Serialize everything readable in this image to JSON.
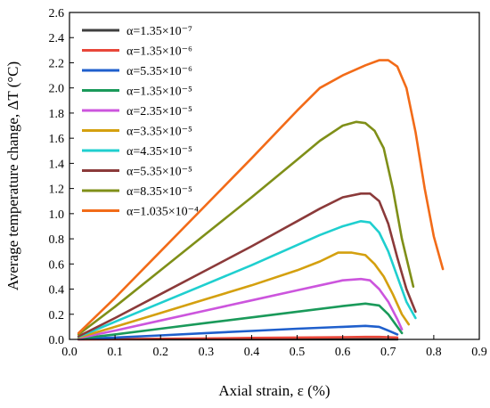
{
  "chart_data": {
    "type": "line",
    "xlabel": "Axial strain, ε (%)",
    "ylabel": "Average temperature change, ΔT (°C)",
    "xlim": [
      0.0,
      0.9
    ],
    "ylim": [
      0.0,
      2.6
    ],
    "xticks": [
      "0.0",
      "0.1",
      "0.2",
      "0.3",
      "0.4",
      "0.5",
      "0.6",
      "0.7",
      "0.8",
      "0.9"
    ],
    "yticks": [
      "0.0",
      "0.2",
      "0.4",
      "0.6",
      "0.8",
      "1.0",
      "1.2",
      "1.4",
      "1.6",
      "1.8",
      "2.0",
      "2.2",
      "2.4",
      "2.6"
    ],
    "legend_position": "top-left",
    "grid": false,
    "series": [
      {
        "name": "α=1.35×10⁻⁷",
        "color": "#3f3f3f",
        "x": [
          0.02,
          0.1,
          0.2,
          0.3,
          0.4,
          0.5,
          0.6,
          0.65,
          0.68,
          0.7,
          0.72
        ],
        "y": [
          0.0,
          0.0,
          0.0,
          0.0,
          0.001,
          0.001,
          0.001,
          0.001,
          0.001,
          0.0,
          0.0
        ]
      },
      {
        "name": "α=1.35×10⁻⁶",
        "color": "#e8473a",
        "x": [
          0.02,
          0.1,
          0.2,
          0.3,
          0.4,
          0.5,
          0.6,
          0.65,
          0.68,
          0.7,
          0.72
        ],
        "y": [
          0.0,
          0.002,
          0.005,
          0.008,
          0.012,
          0.015,
          0.018,
          0.02,
          0.02,
          0.018,
          0.015
        ]
      },
      {
        "name": "α=5.35×10⁻⁶",
        "color": "#1f5fcc",
        "x": [
          0.02,
          0.1,
          0.2,
          0.3,
          0.4,
          0.5,
          0.6,
          0.65,
          0.68,
          0.7,
          0.72
        ],
        "y": [
          0.003,
          0.015,
          0.032,
          0.05,
          0.067,
          0.085,
          0.1,
          0.108,
          0.1,
          0.07,
          0.04
        ]
      },
      {
        "name": "α=1.35×10⁻⁵",
        "color": "#1a9a5a",
        "x": [
          0.02,
          0.1,
          0.2,
          0.3,
          0.4,
          0.5,
          0.6,
          0.65,
          0.68,
          0.7,
          0.72,
          0.73
        ],
        "y": [
          0.006,
          0.04,
          0.085,
          0.13,
          0.175,
          0.22,
          0.265,
          0.285,
          0.27,
          0.2,
          0.1,
          0.05
        ]
      },
      {
        "name": "α=2.35×10⁻⁵",
        "color": "#cc55dd",
        "x": [
          0.02,
          0.1,
          0.2,
          0.3,
          0.4,
          0.5,
          0.55,
          0.6,
          0.64,
          0.66,
          0.68,
          0.7,
          0.72,
          0.73
        ],
        "y": [
          0.01,
          0.07,
          0.15,
          0.23,
          0.31,
          0.39,
          0.43,
          0.47,
          0.48,
          0.47,
          0.4,
          0.3,
          0.16,
          0.08
        ]
      },
      {
        "name": "α=3.35×10⁻⁵",
        "color": "#d4a00f",
        "x": [
          0.02,
          0.1,
          0.2,
          0.3,
          0.4,
          0.5,
          0.55,
          0.59,
          0.62,
          0.65,
          0.67,
          0.69,
          0.71,
          0.73,
          0.745
        ],
        "y": [
          0.015,
          0.1,
          0.21,
          0.32,
          0.43,
          0.55,
          0.62,
          0.69,
          0.69,
          0.67,
          0.6,
          0.5,
          0.36,
          0.2,
          0.12
        ]
      },
      {
        "name": "α=4.35×10⁻⁵",
        "color": "#1fcfcf",
        "x": [
          0.02,
          0.1,
          0.2,
          0.3,
          0.4,
          0.5,
          0.55,
          0.6,
          0.64,
          0.66,
          0.68,
          0.7,
          0.72,
          0.74,
          0.76
        ],
        "y": [
          0.02,
          0.14,
          0.29,
          0.44,
          0.59,
          0.75,
          0.83,
          0.9,
          0.94,
          0.93,
          0.85,
          0.7,
          0.5,
          0.3,
          0.17
        ]
      },
      {
        "name": "α=5.35×10⁻⁵",
        "color": "#8b3a3a",
        "x": [
          0.02,
          0.1,
          0.2,
          0.3,
          0.4,
          0.5,
          0.55,
          0.6,
          0.64,
          0.66,
          0.68,
          0.7,
          0.72,
          0.74,
          0.76
        ],
        "y": [
          0.025,
          0.17,
          0.36,
          0.55,
          0.74,
          0.94,
          1.04,
          1.13,
          1.16,
          1.16,
          1.1,
          0.92,
          0.65,
          0.4,
          0.22
        ]
      },
      {
        "name": "α=8.35×10⁻⁵",
        "color": "#7f8f18",
        "x": [
          0.02,
          0.1,
          0.2,
          0.3,
          0.4,
          0.5,
          0.55,
          0.6,
          0.63,
          0.65,
          0.67,
          0.69,
          0.71,
          0.73,
          0.755
        ],
        "y": [
          0.04,
          0.26,
          0.55,
          0.84,
          1.13,
          1.43,
          1.58,
          1.7,
          1.73,
          1.72,
          1.66,
          1.52,
          1.2,
          0.8,
          0.42
        ]
      },
      {
        "name": "α=1.035×10⁻⁴",
        "color": "#f26b18",
        "x": [
          0.02,
          0.1,
          0.2,
          0.3,
          0.4,
          0.5,
          0.55,
          0.6,
          0.65,
          0.68,
          0.7,
          0.72,
          0.74,
          0.76,
          0.78,
          0.8,
          0.82
        ],
        "y": [
          0.05,
          0.33,
          0.7,
          1.07,
          1.44,
          1.82,
          2.0,
          2.1,
          2.18,
          2.22,
          2.22,
          2.17,
          2.0,
          1.65,
          1.2,
          0.82,
          0.56
        ]
      }
    ]
  }
}
